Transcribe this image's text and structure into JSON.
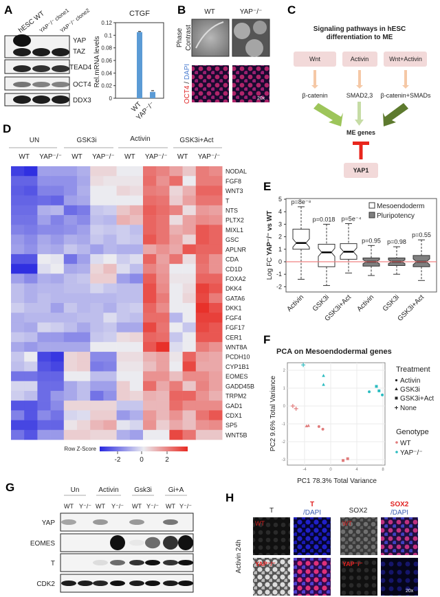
{
  "panels": {
    "A": "A",
    "B": "B",
    "C": "C",
    "D": "D",
    "E": "E",
    "F": "F",
    "G": "G",
    "H": "H"
  },
  "panelA": {
    "lanes": [
      "hESC WT",
      "YAP⁻/⁻ clone1",
      "YAP⁻/⁻ clone2"
    ],
    "blot_labels": [
      "YAP",
      "TAZ",
      "TEAD4",
      "OCT4",
      "DDX3"
    ],
    "blot_intensity": {
      "YAP": [
        1.0,
        0.0,
        0.0
      ],
      "TAZ": [
        0.95,
        0.95,
        0.95
      ],
      "TEAD4": [
        0.9,
        0.85,
        0.85
      ],
      "OCT4": [
        0.55,
        0.5,
        0.5
      ],
      "DDX3": [
        0.95,
        0.95,
        0.95
      ]
    }
  },
  "panelB": {
    "columns": [
      "WT",
      "YAP⁻/⁻"
    ],
    "row1_label_line1": "Phase",
    "row1_label_line2": "Contrast",
    "row2_label_red": "OCT4",
    "row2_label_sep": " / ",
    "row2_label_blue": "DAPI",
    "magnification": "20x"
  },
  "panelC": {
    "title_line1": "Signaling pathways in hESC",
    "title_line2": "differentiation to ME",
    "inputs": [
      "Wnt",
      "Activin",
      "Wnt+Activin"
    ],
    "mediators": [
      "β-catenin",
      "SMAD2,3",
      "β-catenin+SMADs"
    ],
    "target": "ME genes",
    "inhibitor": "YAP1",
    "colors": {
      "box": "#f2d9d9",
      "thin_arrow": "#f5c8a6",
      "arrow1": "#9dc55a",
      "arrow2": "#c6dca5",
      "arrow3": "#5d7a2e",
      "inhibit": "#e8261c"
    }
  },
  "panelD": {
    "groups": [
      "UN",
      "GSK3i",
      "Activin",
      "GSK3i+Act"
    ],
    "subgroups": [
      "WT",
      "YAP⁻/⁻",
      "WT",
      "YAP⁻/⁻",
      "WT",
      "YAP⁻/⁻",
      "WT",
      "YAP⁻/⁻"
    ],
    "colorbar_label": "Row Z-Score",
    "colorbar_ticks": [
      "-2",
      "0",
      "2"
    ]
  },
  "panelE": {
    "legend": [
      "Mesoendoderm",
      "Pluripotency"
    ],
    "ylabel_pre": "Log FC ",
    "ylabel_bold": "YAP⁻/⁻ vs WT"
  },
  "panelF": {
    "title": "PCA on Mesoendodermal genes",
    "treatment_title": "Treatment",
    "treatments": [
      "Activin",
      "GSK3i",
      "GSK3i+Act",
      "None"
    ],
    "genotype_title": "Genotype",
    "genotypes": [
      "WT",
      "YAP⁻/⁻"
    ]
  },
  "panelG": {
    "groups": [
      "Un",
      "Activin",
      "Gsk3i",
      "Gi+A"
    ],
    "lanes": [
      "WT",
      "Y⁻/⁻",
      "WT",
      "Y⁻/⁻",
      "WT",
      "Y⁻/⁻",
      "WT",
      "Y⁻/⁻"
    ],
    "rows": [
      "YAP",
      "EOMES",
      "T",
      "CDK2"
    ],
    "blot_intensity": {
      "YAP": [
        0.35,
        0,
        0.4,
        0,
        0.4,
        0,
        0.55,
        0
      ],
      "EOMES": [
        0,
        0,
        0,
        1.0,
        0.05,
        0.6,
        0.85,
        1.0
      ],
      "T": [
        0,
        0,
        0.1,
        0.6,
        0.85,
        1.0,
        0.85,
        1.0
      ],
      "CDK2": [
        0.95,
        0.95,
        0.9,
        1.0,
        0.95,
        1.0,
        0.95,
        1.0
      ]
    }
  },
  "panelH": {
    "headers": [
      "T",
      "T",
      "/DAPI",
      "SOX2",
      "SOX2",
      "/DAPI"
    ],
    "rows": [
      "WT",
      "YAP⁻/⁻"
    ],
    "side_label": "Activin 24h",
    "magnification": "20x"
  },
  "chart_data": [
    {
      "type": "bar",
      "title": "CTGF",
      "categories": [
        "WT",
        "YAP⁻/⁻"
      ],
      "values": [
        0.105,
        0.01
      ],
      "error": [
        0.001,
        0.002
      ],
      "ylabel": "Rel.mRNA levels",
      "ylim": [
        0,
        0.12
      ],
      "yticks": [
        "0",
        "0.02",
        "0.04",
        "0.06",
        "0.08",
        "0.1",
        "0.12"
      ],
      "color": "#5b9bd5"
    },
    {
      "type": "heatmap",
      "genes": [
        "NODAL",
        "FGF8",
        "WNT3",
        "T",
        "NTS",
        "PLTX2",
        "MIXL1",
        "GSC",
        "APLNR",
        "CDA",
        "CD1D",
        "FOXA2",
        "DKK4",
        "GATA6",
        "DKK1",
        "FGF4",
        "FGF17",
        "CER1",
        "WNT8A",
        "PCDH10",
        "CYP1B1",
        "EOMES",
        "GADD45B",
        "TRPM2",
        "GAD1",
        "CDX1",
        "SP5",
        "WNT5B"
      ],
      "zrange": [
        -2.6,
        2.6
      ],
      "values": [
        [
          -2.3,
          -2.5,
          -1,
          -1,
          -1,
          -0.8,
          0.3,
          0.3,
          0,
          0,
          1.6,
          1.4,
          1,
          0.5,
          1.5,
          1.3
        ],
        [
          -1.8,
          -1.8,
          -1.2,
          -1.2,
          -1.2,
          -0.9,
          0.2,
          0.1,
          0.1,
          0.1,
          1.7,
          1.2,
          1.7,
          0,
          1.5,
          1.5
        ],
        [
          -1.9,
          -2,
          -1.4,
          -1.4,
          -1.2,
          -0.8,
          0,
          0,
          0.3,
          0.2,
          1.5,
          1.4,
          0.3,
          0.8,
          1.8,
          1.8
        ],
        [
          -1.8,
          -1.8,
          -1.7,
          -1.8,
          -1,
          -0.9,
          0,
          0,
          0,
          0,
          1.7,
          1.6,
          0.4,
          1,
          1.6,
          1.6
        ],
        [
          -1.7,
          -1.7,
          -0.8,
          -0.7,
          -1.7,
          -1.5,
          -0.5,
          -0.4,
          0.5,
          0.8,
          1.9,
          1.7,
          1.4,
          0.2,
          1.1,
          1
        ],
        [
          -1.6,
          -1.6,
          -1,
          -1.4,
          -1.1,
          -1.3,
          -0.6,
          -0.7,
          0.8,
          0.6,
          1.8,
          1.6,
          0.2,
          1,
          1.3,
          1.2
        ],
        [
          -1.4,
          -1.5,
          -1.3,
          -1.3,
          -1.2,
          -1,
          -0.4,
          -0.5,
          -0.4,
          -0.6,
          1.8,
          1.6,
          0.8,
          1,
          2,
          1.8
        ],
        [
          -1.1,
          -1.3,
          -0.9,
          -1.1,
          -0.8,
          -0.9,
          -0.5,
          -0.7,
          -0.4,
          -0.5,
          2,
          1.6,
          1,
          0.3,
          2,
          1.8
        ],
        [
          -1,
          -1.2,
          -0.8,
          -0.9,
          -0.5,
          -0.7,
          -1,
          -0.7,
          -0.8,
          -0.8,
          0.9,
          1.2,
          0.9,
          2,
          1.8,
          1.8
        ],
        [
          -2,
          -2,
          0,
          -0.1,
          -1.6,
          -1,
          -0.2,
          0,
          -0.4,
          -0.2,
          1.8,
          1,
          1.6,
          0.2,
          1.7,
          1.2
        ],
        [
          -2.5,
          -2.5,
          -0.2,
          0,
          -0.9,
          -0.8,
          0.3,
          0.6,
          -0.2,
          -0.6,
          1.4,
          1.1,
          0,
          0,
          1.6,
          1.2
        ],
        [
          -1,
          -1.3,
          -0.8,
          -0.9,
          -0.6,
          -0.5,
          0.4,
          0.4,
          -1,
          -1.3,
          1.9,
          1.2,
          0.1,
          0.1,
          1.8,
          1.8
        ],
        [
          -0.6,
          -0.8,
          -0.7,
          -0.7,
          -0.6,
          -0.6,
          -0.3,
          -0.5,
          -0.6,
          -0.6,
          2.1,
          1.3,
          0,
          0.2,
          2.3,
          2
        ],
        [
          -0.6,
          -0.8,
          -0.6,
          -0.7,
          -0.7,
          -0.7,
          -0.7,
          -0.7,
          -0.6,
          -0.6,
          2.1,
          1.5,
          0,
          0.3,
          2.2,
          1.5
        ],
        [
          -0.4,
          -0.6,
          -0.6,
          -1,
          -0.5,
          -0.7,
          -0.6,
          -0.8,
          -0.5,
          -0.4,
          1.8,
          1.3,
          0,
          0,
          2.5,
          2.1
        ],
        [
          -0.8,
          -0.7,
          -0.7,
          -0.7,
          -0.7,
          -0.6,
          -0.6,
          -0.2,
          -0.5,
          -0.6,
          1.7,
          1.7,
          -0.7,
          0,
          2.3,
          2.3
        ],
        [
          -0.8,
          -0.9,
          -0.3,
          -0.4,
          -0.6,
          -0.9,
          -0.6,
          -0.5,
          -0.9,
          -0.9,
          2.2,
          1.6,
          0,
          -0.5,
          2.2,
          2
        ],
        [
          -0.5,
          -0.6,
          -1.1,
          -1.1,
          -1.3,
          -1.3,
          -0.5,
          -0.4,
          0.2,
          0.3,
          1.8,
          1.7,
          -0.5,
          0,
          2,
          2
        ],
        [
          -0.9,
          -1.1,
          -0.9,
          -0.9,
          -0.9,
          -0.9,
          0,
          0,
          0,
          0,
          2,
          2.5,
          -0.2,
          0,
          1.5,
          1.2
        ],
        [
          -0.5,
          0,
          -2.2,
          -2.4,
          0.3,
          0.4,
          -1.3,
          -1.3,
          0.2,
          0.2,
          0.8,
          1,
          0.1,
          1.8,
          1,
          0.9
        ],
        [
          -0.6,
          -0.4,
          -2,
          -2.2,
          0.3,
          0.4,
          -1.5,
          -1.4,
          0.1,
          0.1,
          0.6,
          1,
          0,
          2.2,
          0.9,
          0.9
        ],
        [
          -1.6,
          -1.6,
          -1.8,
          -1.8,
          0,
          0,
          -0.6,
          -0.6,
          0,
          0,
          1.2,
          1.2,
          0.6,
          1.3,
          1.3,
          1
        ],
        [
          -0.3,
          -0.3,
          -1.7,
          -1.7,
          -0.9,
          -0.6,
          -1,
          -1,
          0.4,
          0,
          1.7,
          0.9,
          1.5,
          0.5,
          1.4,
          1
        ],
        [
          -0.4,
          -0.6,
          -1.7,
          -1.1,
          -0.9,
          -0.6,
          -1.6,
          -1.2,
          0.4,
          0.3,
          0.8,
          0.7,
          1.8,
          1.8,
          1.2,
          0.8
        ],
        [
          -2,
          -2,
          -1.7,
          -1.3,
          0.3,
          0.3,
          0.3,
          0.3,
          -0.5,
          -0.5,
          0.7,
          0.7,
          1.7,
          1.3,
          1.3,
          1.3
        ],
        [
          -1.4,
          -2,
          -1.3,
          -1.6,
          -0.3,
          -0.2,
          0.4,
          0.4,
          -1.1,
          -0.8,
          1.1,
          0.7,
          1.2,
          0.6,
          1.6,
          2
        ],
        [
          -2.2,
          -2.2,
          -1.8,
          -1.8,
          0.1,
          0.3,
          0.7,
          0.9,
          -0.1,
          -0.3,
          1.2,
          0.4,
          0.9,
          0.6,
          1.2,
          1.3
        ],
        [
          -1.6,
          -2,
          -1.1,
          -1.1,
          0.4,
          0.4,
          0.3,
          0.3,
          -0.8,
          -1,
          0,
          0,
          2.2,
          1.6,
          0.5,
          0.5
        ]
      ],
      "colors": {
        "low": "#2828e0",
        "mid": "#ebebf0",
        "high": "#e82a22"
      }
    },
    {
      "type": "boxplot",
      "categories": [
        "Activin",
        "GSK3i",
        "GSK3i+Act",
        "Activin",
        "GSK3i",
        "GSK3i+Act"
      ],
      "series_of": [
        "Mesoendoderm",
        "Mesoendoderm",
        "Mesoendoderm",
        "Pluripotency",
        "Pluripotency",
        "Pluripotency"
      ],
      "p_values": [
        "p=8e⁻⁸",
        "p=0.018",
        "p=5e⁻⁴",
        "p=0.95",
        "p=0.98",
        "p=0.55"
      ],
      "whisker_low": [
        -1.4,
        -1.9,
        -0.9,
        -1.1,
        -1.0,
        -1.5
      ],
      "q1": [
        1.0,
        -0.4,
        0.2,
        -0.35,
        -0.3,
        -0.4
      ],
      "median": [
        1.5,
        0.75,
        0.8,
        0,
        0,
        0
      ],
      "q3": [
        2.6,
        1.4,
        1.45,
        0.3,
        0.3,
        0.5
      ],
      "whisker_high": [
        4.4,
        3.0,
        3.05,
        1.3,
        1.2,
        1.75
      ],
      "ylim": [
        -2.3,
        5.2
      ],
      "yticks": [
        "-2",
        "-1",
        "0",
        "1",
        "2",
        "3",
        "4",
        "5"
      ],
      "reference_line": 0,
      "colors": {
        "Mesoendoderm": "#ffffff",
        "Pluripotency": "#808080",
        "reference": "#f08080"
      }
    },
    {
      "type": "scatter",
      "xlabel": "PC1  78.3% Total Variance",
      "ylabel": "PC2  9.6% Total Variance",
      "xlim": [
        -6.3,
        8.5
      ],
      "ylim": [
        -3.3,
        2.5
      ],
      "xticks": [
        "-4",
        "0",
        "4",
        "8"
      ],
      "yticks": [
        "-3",
        "-2",
        "-1",
        "0",
        "1",
        "2"
      ],
      "grid": true,
      "legend": "right",
      "points": [
        {
          "x": -4.2,
          "y": 2.3,
          "treatment": "None",
          "genotype": "YAP⁻/⁻"
        },
        {
          "x": -1.1,
          "y": 1.7,
          "treatment": "GSK3i",
          "genotype": "YAP⁻/⁻"
        },
        {
          "x": -1.1,
          "y": 1.2,
          "treatment": "GSK3i",
          "genotype": "YAP⁻/⁻"
        },
        {
          "x": 5.9,
          "y": 0.8,
          "treatment": "Activin",
          "genotype": "YAP⁻/⁻"
        },
        {
          "x": 7.0,
          "y": 1.1,
          "treatment": "GSK3i+Act",
          "genotype": "YAP⁻/⁻"
        },
        {
          "x": 7.4,
          "y": 0.85,
          "treatment": "GSK3i+Act",
          "genotype": "YAP⁻/⁻"
        },
        {
          "x": 7.9,
          "y": 0.62,
          "treatment": "Activin",
          "genotype": "YAP⁻/⁻"
        },
        {
          "x": -5.8,
          "y": 0.0,
          "treatment": "None",
          "genotype": "WT"
        },
        {
          "x": -5.3,
          "y": -0.15,
          "treatment": "None",
          "genotype": "WT"
        },
        {
          "x": -3.7,
          "y": -1.12,
          "treatment": "GSK3i",
          "genotype": "WT"
        },
        {
          "x": -3.4,
          "y": -1.1,
          "treatment": "GSK3i",
          "genotype": "WT"
        },
        {
          "x": -1.8,
          "y": -1.15,
          "treatment": "Activin",
          "genotype": "WT"
        },
        {
          "x": -1.2,
          "y": -1.3,
          "treatment": "Activin",
          "genotype": "WT"
        },
        {
          "x": 1.9,
          "y": -3.05,
          "treatment": "GSK3i+Act",
          "genotype": "WT"
        },
        {
          "x": 2.6,
          "y": -2.95,
          "treatment": "GSK3i+Act",
          "genotype": "WT"
        }
      ],
      "colors": {
        "WT": "#e07b7b",
        "YAP⁻/⁻": "#2bbcc0"
      }
    }
  ]
}
